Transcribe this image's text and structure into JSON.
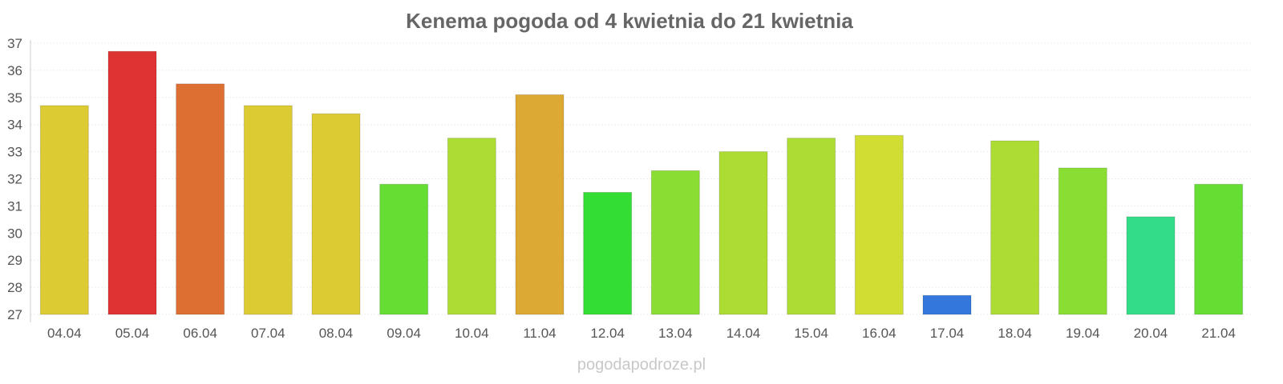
{
  "chart_data": {
    "type": "bar",
    "title": "Kenema pogoda od 4 kwietnia do 21 kwietnia",
    "xlabel": "",
    "ylabel": "",
    "ylim": [
      27,
      37
    ],
    "yticks": [
      27,
      28,
      29,
      30,
      31,
      32,
      33,
      34,
      35,
      36,
      37
    ],
    "grid": true,
    "categories": [
      "04.04",
      "05.04",
      "06.04",
      "07.04",
      "08.04",
      "09.04",
      "10.04",
      "11.04",
      "12.04",
      "13.04",
      "14.04",
      "15.04",
      "16.04",
      "17.04",
      "18.04",
      "19.04",
      "20.04",
      "21.04"
    ],
    "values": [
      34.7,
      36.7,
      35.5,
      34.7,
      34.4,
      31.8,
      33.5,
      35.1,
      31.5,
      32.3,
      33.0,
      33.5,
      33.6,
      27.7,
      33.4,
      32.4,
      30.6,
      31.8
    ],
    "colors": [
      "#dccb33",
      "#dd3333",
      "#dd6f33",
      "#dccb33",
      "#dccb33",
      "#66dd33",
      "#addd33",
      "#dca933",
      "#33dd33",
      "#8add33",
      "#addd33",
      "#addd33",
      "#d1dd33",
      "#3377dd",
      "#addd33",
      "#8add33",
      "#33dd88",
      "#66dd33"
    ]
  },
  "watermark": "pogodapodroze.pl"
}
